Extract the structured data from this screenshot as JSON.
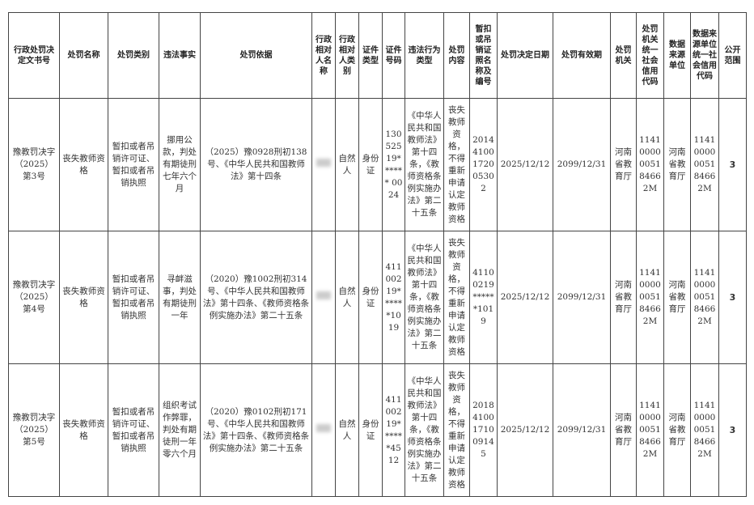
{
  "headers": [
    "行政处罚决定文书号",
    "处罚名称",
    "处罚类别",
    "违法事实",
    "处罚依据",
    "行政相对人名称",
    "行政相对人类别",
    "证件类型",
    "证件号码",
    "违法行为类型",
    "处罚内容",
    "暂扣或吊销证照名称及编号",
    "处罚决定日期",
    "处罚有效期",
    "处罚机关",
    "处罚机关统一社会信用代码",
    "数据来源单位",
    "数据来源单位统一社会信用代码",
    "公开范围"
  ],
  "rows": [
    {
      "doc_no": "豫教罚决字（2025）第3号",
      "name": "丧失教师资格",
      "category": "暂扣或者吊销许可证、暂扣或者吊销执照",
      "facts": "挪用公款，判处有期徒刑七年六个月",
      "basis": "（2025）豫0928刑初138号、《中华人民共和国教师法》第十四条",
      "party_type": "自然人",
      "id_type": "身份证",
      "id_no": "130525 19****** 0024",
      "violation_type": "《中华人民共和国教师法》第十四条，《教师资格条例实施办法》第二十五条",
      "content": "丧失教师资格，不得重新申请认定教师资格",
      "license_no": "20144100172005302",
      "decision_date": "2025/12/12",
      "valid_until": "2099/12/31",
      "authority": "河南省教育厅",
      "authority_code": "11410000005184662M",
      "source": "河南省教育厅",
      "source_code": "11410000005184662M",
      "scope": "3"
    },
    {
      "doc_no": "豫教罚决字（2025）第4号",
      "name": "丧失教师资格",
      "category": "暂扣或者吊销许可证、暂扣或者吊销执照",
      "facts": "寻衅滋事，判处有期徒刑一年",
      "basis": "（2020）豫1002刑初314号、《中华人民共和国教师法》第十四条、《教师资格条例实施办法》第二十五条",
      "party_type": "自然人",
      "id_type": "身份证",
      "id_no": "41100219******1019",
      "violation_type": "《中华人民共和国教师法》第十四条，《教师资格条例实施办法》第二十五条",
      "content": "丧失教师资格，不得重新申请认定教师资格",
      "license_no": "41100219******1019",
      "decision_date": "2025/12/12",
      "valid_until": "2099/12/31",
      "authority": "河南省教育厅",
      "authority_code": "11410000005184662M",
      "source": "河南省教育厅",
      "source_code": "11410000005184662M",
      "scope": "3"
    },
    {
      "doc_no": "豫教罚决字（2025）第5号",
      "name": "丧失教师资格",
      "category": "暂扣或者吊销许可证、暂扣或者吊销执照",
      "facts": "组织考试作弊罪，判处有期徒刑一年零六个月",
      "basis": "（2020）豫0102刑初171号、《中华人民共和国教师法》第十四条、《教师资格条例实施办法》第二十五条",
      "party_type": "自然人",
      "id_type": "身份证",
      "id_no": "41100219******4512",
      "violation_type": "《中华人民共和国教师法》第十四条，《教师资格条例实施办法》第二十五条",
      "content": "丧失教师资格，不得重新申请认定教师资格",
      "license_no": "20184100171009145",
      "decision_date": "2025/12/12",
      "valid_until": "2099/12/31",
      "authority": "河南省教育厅",
      "authority_code": "11410000005184662M",
      "source": "河南省教育厅",
      "source_code": "11410000005184662M",
      "scope": "3"
    }
  ]
}
